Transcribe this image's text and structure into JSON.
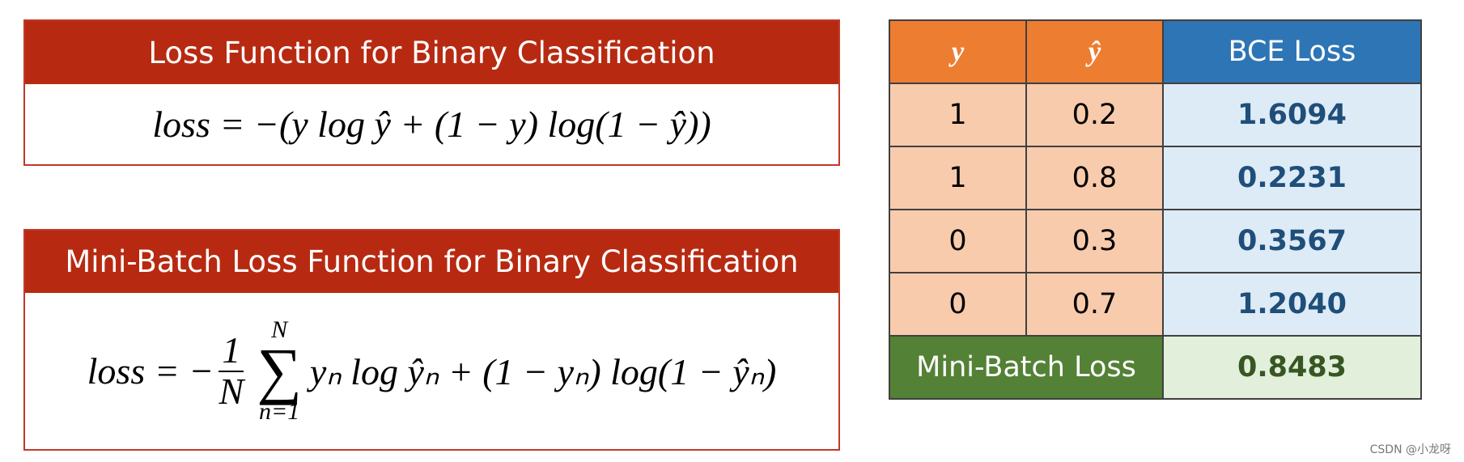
{
  "panels": [
    {
      "title": "Loss Function for Binary Classification",
      "formula": {
        "text": "loss = −(y log ŷ + (1 − y) log(1 − ŷ))"
      }
    },
    {
      "title": "Mini-Batch Loss Function for Binary Classification",
      "formula": {
        "lhs": "loss = −",
        "numerator": "1",
        "denominator": "N",
        "sum": "∑",
        "upper": "N",
        "lower": "n=1",
        "body": "yₙ log ŷₙ + (1 − yₙ) log(1 − ŷₙ)"
      }
    }
  ],
  "table": {
    "header": [
      "y",
      "ŷ",
      "BCE Loss"
    ],
    "rows": [
      [
        "1",
        "0.2",
        "1.6094"
      ],
      [
        "1",
        "0.8",
        "0.2231"
      ],
      [
        "0",
        "0.3",
        "0.3567"
      ],
      [
        "0",
        "0.7",
        "1.2040"
      ]
    ],
    "footer": [
      "Mini-Batch Loss",
      "0.8483"
    ]
  },
  "watermark": "CSDN @小龙呀"
}
